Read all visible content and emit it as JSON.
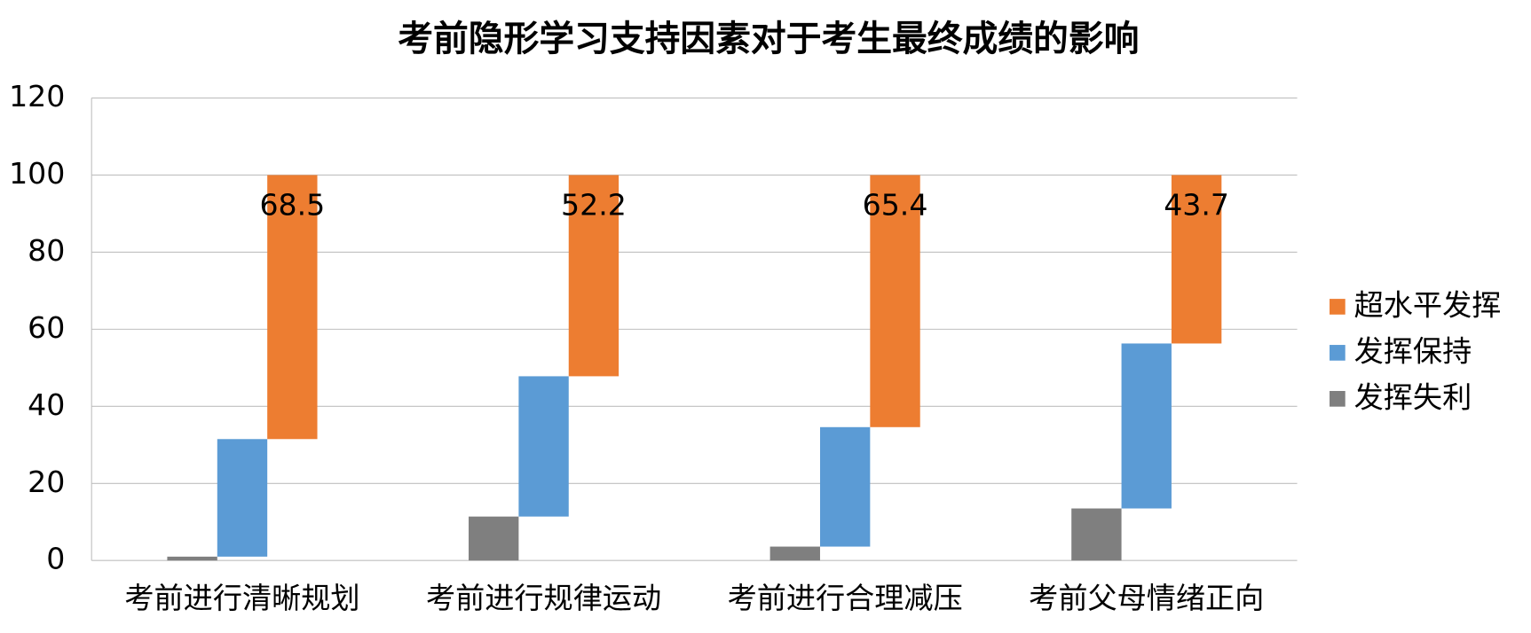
{
  "chart_data": {
    "type": "waterfall-stack",
    "title": "考前隐形学习支持因素对于考生最终成绩的影响",
    "categories": [
      "考前进行清晰规划",
      "考前进行规律运动",
      "考前进行合理减压",
      "考前父母情绪正向"
    ],
    "series": [
      {
        "name": "发挥失利",
        "color": "#7f7f7f",
        "values": [
          1.0,
          11.4,
          3.6,
          13.5
        ]
      },
      {
        "name": "发挥保持",
        "color": "#5b9bd5",
        "values": [
          30.5,
          36.4,
          31.0,
          42.8
        ]
      },
      {
        "name": "超水平发挥",
        "color": "#ed7d31",
        "values": [
          68.5,
          52.2,
          65.4,
          43.7
        ]
      }
    ],
    "ylim": [
      0,
      120
    ],
    "yticks": [
      0,
      20,
      40,
      60,
      80,
      100,
      120
    ],
    "grid": true,
    "legend": "right"
  }
}
